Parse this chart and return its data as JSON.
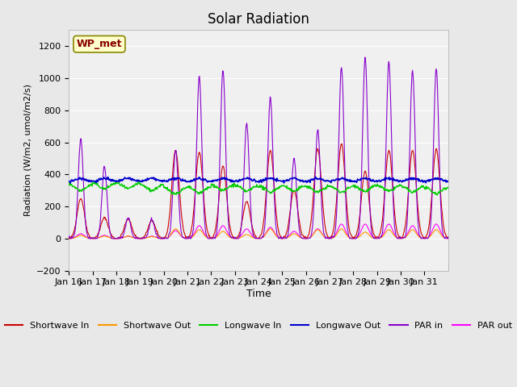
{
  "title": "Solar Radiation",
  "ylabel": "Radiation (W/m2, umol/m2/s)",
  "xlabel": "Time",
  "ylim": [
    -200,
    1300
  ],
  "yticks": [
    -200,
    0,
    200,
    400,
    600,
    800,
    1000,
    1200
  ],
  "date_labels": [
    "Jan 16",
    "Jan 17",
    "Jan 18",
    "Jan 19",
    "Jan 20",
    "Jan 21",
    "Jan 22",
    "Jan 23",
    "Jan 24",
    "Jan 25",
    "Jan 26",
    "Jan 27",
    "Jan 28",
    "Jan 29",
    "Jan 30",
    "Jan 31"
  ],
  "annotation": "WP_met",
  "colors": {
    "shortwave_in": "#cc0000",
    "shortwave_out": "#ff9900",
    "longwave_in": "#00cc00",
    "longwave_out": "#0000cc",
    "par_in": "#8800cc",
    "par_out": "#ff00ff"
  },
  "legend_labels": [
    "Shortwave In",
    "Shortwave Out",
    "Longwave In",
    "Longwave Out",
    "PAR in",
    "PAR out"
  ],
  "background_color": "#e8e8e8",
  "plot_bg_color": "#f0f0f0"
}
